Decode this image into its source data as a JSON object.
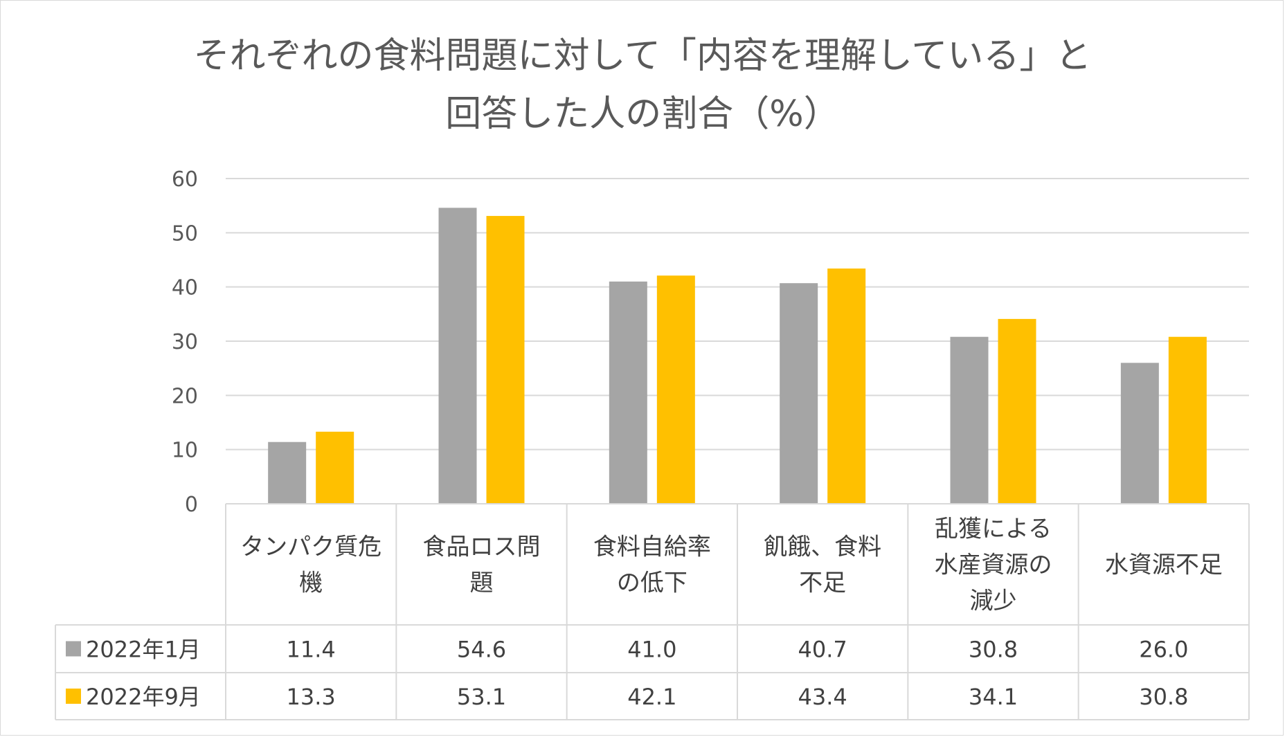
{
  "chart_data": {
    "type": "bar",
    "title": "それぞれの食料問題に対して「内容を理解している」と回答した人の割合（%）",
    "title_lines": [
      "それぞれの食料問題に対して「内容を理解している」と",
      "回答した人の割合（%）"
    ],
    "categories": [
      [
        "タンパク質危",
        "機"
      ],
      [
        "食品ロス問",
        "題"
      ],
      [
        "食料自給率",
        "の低下"
      ],
      [
        "飢餓、食料",
        "不足"
      ],
      [
        "乱獲による",
        "水産資源の",
        "減少"
      ],
      [
        "水資源不足"
      ]
    ],
    "series": [
      {
        "name": "2022年1月",
        "color": "#a5a5a5",
        "values": [
          11.4,
          54.6,
          41.0,
          40.7,
          30.8,
          26.0
        ],
        "labels": [
          "11.4",
          "54.6",
          "41.0",
          "40.7",
          "30.8",
          "26.0"
        ]
      },
      {
        "name": "2022年9月",
        "color": "#ffc000",
        "values": [
          13.3,
          53.1,
          42.1,
          43.4,
          34.1,
          30.8
        ],
        "labels": [
          "13.3",
          "53.1",
          "42.1",
          "43.4",
          "34.1",
          "30.8"
        ]
      }
    ],
    "ylim": [
      0,
      60
    ],
    "yticks": [
      0,
      10,
      20,
      30,
      40,
      50,
      60
    ],
    "grid": true,
    "legend": "data-table"
  }
}
